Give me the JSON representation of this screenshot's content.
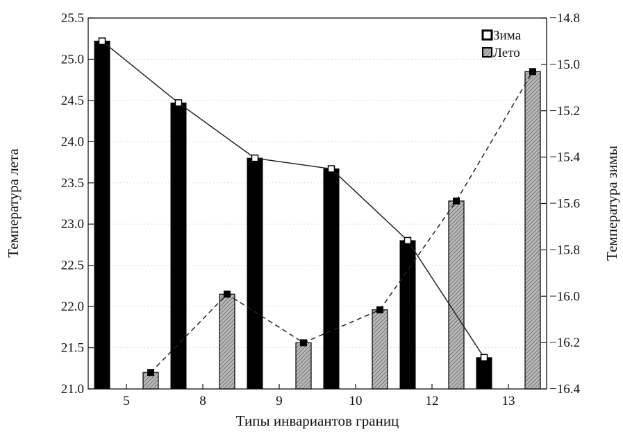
{
  "chart_data": {
    "type": "bar",
    "categories": [
      "5",
      "8",
      "9",
      "10",
      "12",
      "13"
    ],
    "xlabel": "Типы инвариантов границ",
    "ylabel_left": "Температура лета",
    "ylabel_right": "Температура зимы",
    "ylim_left": [
      21.0,
      25.5
    ],
    "ylim_right": [
      -16.4,
      -14.8
    ],
    "yticks_left": [
      "21.0",
      "21.5",
      "22.0",
      "22.5",
      "23.0",
      "23.5",
      "24.0",
      "24.5",
      "25.0",
      "25.5"
    ],
    "yticks_right": [
      "−16.4",
      "−16.2",
      "−16.0",
      "−15.8",
      "−15.6",
      "−15.4",
      "−15.2",
      "−15.0",
      "−14.8"
    ],
    "grid": true,
    "legend_position": "top-right",
    "colors": {
      "winter": "#000000",
      "summer_fill": "#a8a8a8",
      "line": "#222222"
    },
    "series": [
      {
        "name": "Зима",
        "axis": "left",
        "style": "solid",
        "values": [
          25.22,
          24.47,
          23.8,
          23.67,
          22.8,
          21.38
        ]
      },
      {
        "name": "Лето",
        "axis": "left",
        "style": "dashed",
        "values": [
          21.2,
          22.15,
          21.56,
          21.96,
          23.28,
          24.85
        ]
      }
    ]
  }
}
